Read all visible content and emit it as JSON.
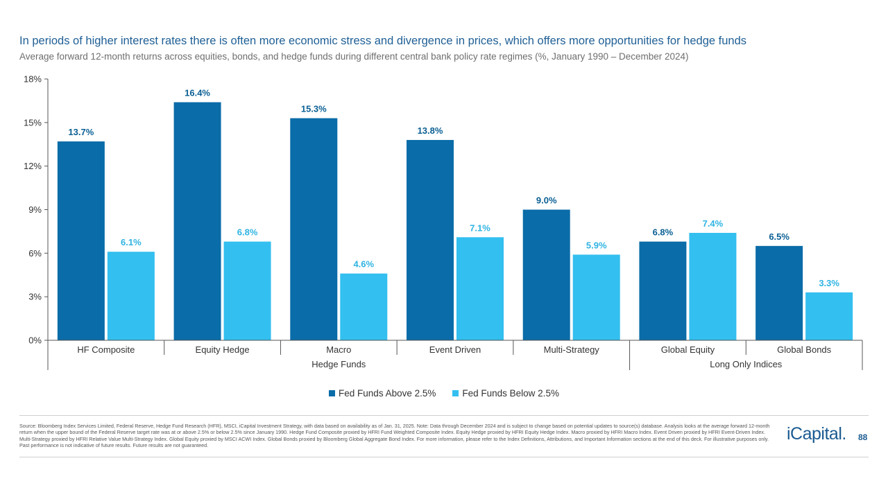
{
  "title": "In periods of higher interest rates there is often more economic stress and divergence in prices, which offers more opportunities for hedge funds",
  "subtitle": "Average forward 12-month returns across equities, bonds, and hedge funds during different central bank policy rate regimes (%, January 1990 – December 2024)",
  "chart_data": {
    "type": "bar",
    "categories": [
      "HF Composite",
      "Equity Hedge",
      "Macro",
      "Event Driven",
      "Multi-Strategy",
      "Global Equity",
      "Global Bonds"
    ],
    "groups": [
      {
        "label": "Hedge Funds",
        "count": 5
      },
      {
        "label": "Long Only Indices",
        "count": 2
      }
    ],
    "series": [
      {
        "name": "Fed Funds Above 2.5%",
        "color": "#0a6ca8",
        "values": [
          13.7,
          16.4,
          15.3,
          13.8,
          9.0,
          6.8,
          6.5
        ],
        "labels": [
          "13.7%",
          "16.4%",
          "15.3%",
          "13.8%",
          "9.0%",
          "6.8%",
          "6.5%"
        ]
      },
      {
        "name": "Fed Funds Below 2.5%",
        "color": "#33bfef",
        "values": [
          6.1,
          6.8,
          4.6,
          7.1,
          5.9,
          7.4,
          3.3
        ],
        "labels": [
          "6.1%",
          "6.8%",
          "4.6%",
          "7.1%",
          "5.9%",
          "7.4%",
          "3.3%"
        ]
      }
    ],
    "yticks": [
      0,
      3,
      6,
      9,
      12,
      15,
      18
    ],
    "ytick_labels": [
      "0%",
      "3%",
      "6%",
      "9%",
      "12%",
      "15%",
      "18%"
    ],
    "ylim": [
      0,
      18
    ]
  },
  "source": "Source: Bloomberg Index Services Limited, Federal Reserve, Hedge Fund Research (HFR), MSCI, iCapital Investment Strategy, with data based on availability as of Jan. 31, 2025. Note: Data through December 2024 and is subject to change based on potential updates to source(s) database. Analysis looks at the average forward 12-month return when the upper bound of the Federal Reserve target rate was at or above 2.5% or below 2.5% since January 1990. Hedge Fund Composite proxied by HFRI Fund Weighted Composite Index. Equity Hedge proxied by HFRI Equity Hedge Index. Macro proxied by HFRI Macro Index. Event Driven proxied by HFRI Event-Driven Index. Multi-Strategy proxied by HFRI Relative Value Multi-Strategy Index. Global Equity proxied by MSCI ACWI Index. Global Bonds proxied by Bloomberg Global Aggregate Bond Index. For more information, please refer to the Index Definitions, Attributions, and Important Information sections at the end of this deck. For illustrative purposes only. Past performance is not indicative of future results. Future results are not guaranteed.",
  "logo": "iCapital.",
  "page_number": "88"
}
